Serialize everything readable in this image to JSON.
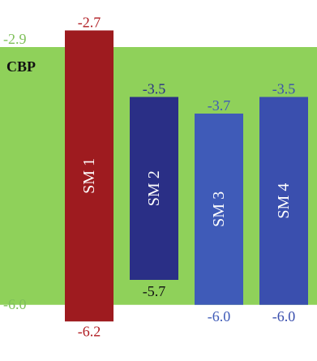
{
  "diagram": {
    "scale": {
      "top": -2.5,
      "bottom": -6.5
    },
    "host": {
      "label": "CBP",
      "upper": -2.9,
      "lower": -6.0,
      "upper_label": "-2.9",
      "lower_label": "-6.0",
      "fill_color": "#8fd15a",
      "label_color": "#111111",
      "value_color": "#7fc05a"
    },
    "bars": [
      {
        "name": "SM 1",
        "upper": -2.7,
        "lower": -6.2,
        "upper_label": "-2.7",
        "lower_label": "-6.2",
        "color": "#9e1b1f",
        "label_color": "#b01c22"
      },
      {
        "name": "SM 2",
        "upper": -3.5,
        "lower": -5.7,
        "upper_label": "-3.5",
        "lower_label": "-5.7",
        "color": "#2a2f86",
        "label_color": "#2a2f86"
      },
      {
        "name": "SM 3",
        "upper": -3.7,
        "lower": -6.0,
        "upper_label": "-3.7",
        "lower_label": "-6.0",
        "color": "#3f5bb8",
        "label_color": "#3f5bb8"
      },
      {
        "name": "SM 4",
        "upper": -3.5,
        "lower": -6.0,
        "upper_label": "-3.5",
        "lower_label": "-6.0",
        "color": "#3a4fae",
        "label_color": "#3a4fae"
      }
    ]
  }
}
